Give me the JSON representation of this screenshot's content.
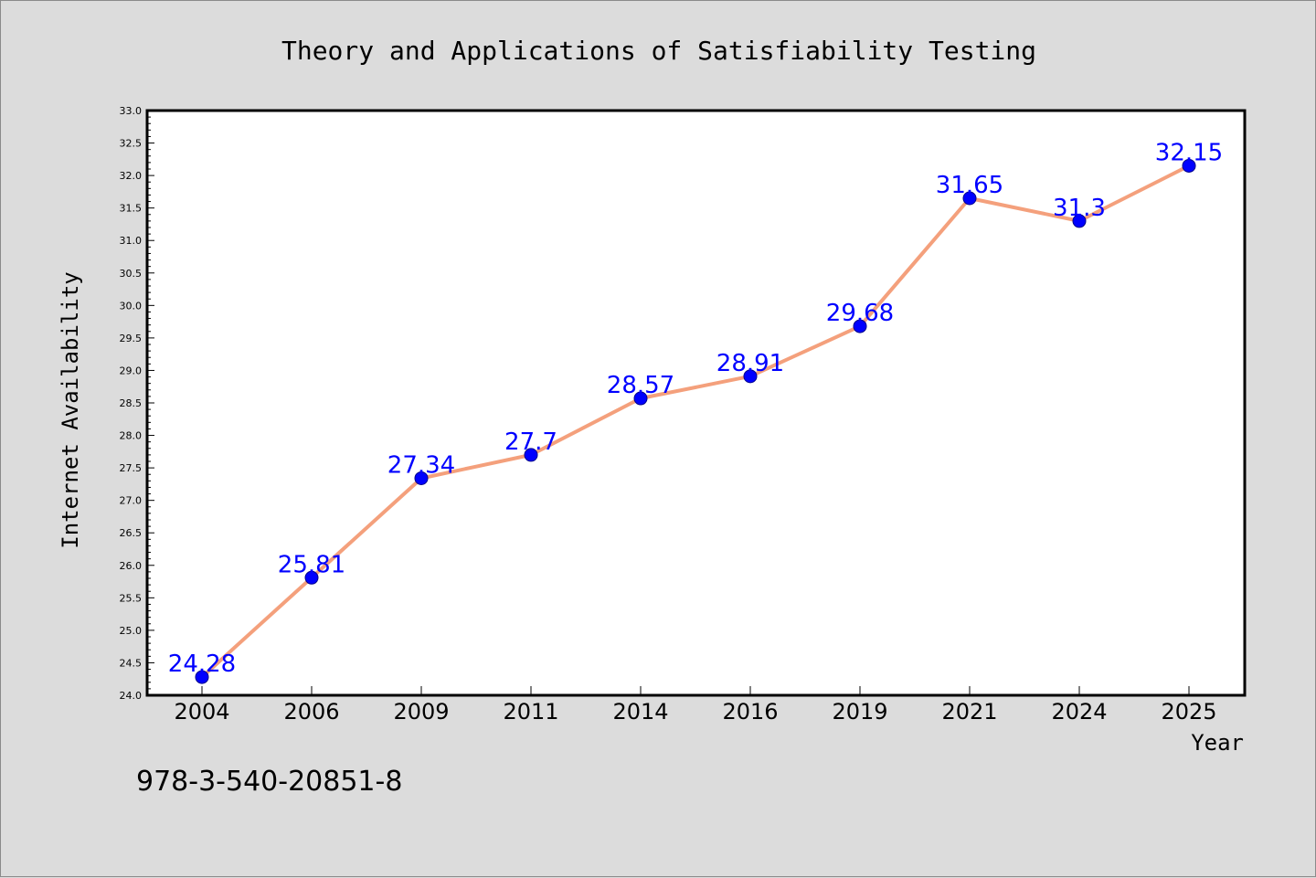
{
  "chart_data": {
    "type": "line",
    "title": "Theory and Applications of Satisfiability Testing",
    "xlabel": "Year",
    "ylabel": "Internet Availability",
    "categories": [
      "2004",
      "2006",
      "2009",
      "2011",
      "2014",
      "2016",
      "2019",
      "2021",
      "2024",
      "2025"
    ],
    "series": [
      {
        "values": [
          24.28,
          25.81,
          27.34,
          27.7,
          28.57,
          28.91,
          29.68,
          31.65,
          31.3,
          32.15
        ]
      }
    ],
    "data_labels": [
      "24.28",
      "25.81",
      "27.34",
      "27.7",
      "28.57",
      "28.91",
      "29.68",
      "31.65",
      "31.3",
      "32.15"
    ],
    "ylim": [
      24.0,
      33.0
    ],
    "yticks": [
      "24.0",
      "24.5",
      "25.0",
      "25.5",
      "26.0",
      "26.5",
      "27.0",
      "27.5",
      "28.0",
      "28.5",
      "29.0",
      "29.5",
      "30.0",
      "30.5",
      "31.0",
      "31.5",
      "32.0",
      "32.5",
      "33.0"
    ],
    "grid": false,
    "legend": "none",
    "colors": {
      "line": "#f4a07c",
      "marker": "#0000ff",
      "data_label": "#0000ff",
      "plot_background": "#ffffff",
      "page_background": "#dcdcdc"
    }
  },
  "footer": {
    "isbn": "978-3-540-20851-8"
  }
}
